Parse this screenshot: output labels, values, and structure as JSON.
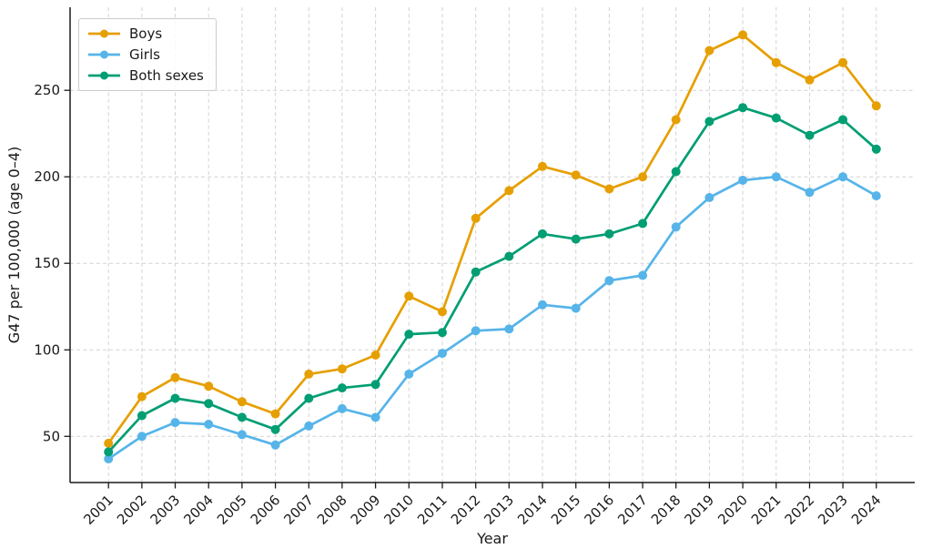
{
  "chart_data": {
    "type": "line",
    "title": "",
    "xlabel": "Year",
    "ylabel": "G47 per 100,000 (age 0–4)",
    "x": [
      2001,
      2002,
      2003,
      2004,
      2005,
      2006,
      2007,
      2008,
      2009,
      2010,
      2011,
      2012,
      2013,
      2014,
      2015,
      2016,
      2017,
      2018,
      2019,
      2020,
      2021,
      2022,
      2023,
      2024
    ],
    "series": [
      {
        "name": "Boys",
        "color": "#E69F00",
        "values": [
          46,
          73,
          84,
          79,
          70,
          63,
          86,
          89,
          97,
          131,
          122,
          176,
          192,
          206,
          201,
          193,
          200,
          233,
          273,
          282,
          266,
          256,
          266,
          241
        ]
      },
      {
        "name": "Girls",
        "color": "#56B4E9",
        "values": [
          37,
          50,
          58,
          57,
          51,
          45,
          56,
          66,
          61,
          86,
          98,
          111,
          112,
          126,
          124,
          140,
          143,
          171,
          188,
          198,
          200,
          191,
          200,
          189
        ]
      },
      {
        "name": "Both sexes",
        "color": "#009E73",
        "values": [
          41,
          62,
          72,
          69,
          61,
          54,
          72,
          78,
          80,
          109,
          110,
          145,
          154,
          167,
          164,
          167,
          173,
          203,
          232,
          240,
          234,
          224,
          233,
          216
        ]
      }
    ],
    "yticks": [
      50,
      100,
      150,
      200,
      250
    ],
    "xlim": [
      1999.85,
      2025.15
    ],
    "ylim": [
      23.3,
      298
    ],
    "grid": true,
    "legend_position": "upper left",
    "marker": "circle",
    "line_width": 2.7,
    "marker_radius": 5
  },
  "style": {
    "background": "#ffffff",
    "grid_color": "#d2d2d2",
    "spine_color": "#1a1a1a",
    "text_color": "#1a1a1a",
    "legend_border": "#cccccc"
  }
}
